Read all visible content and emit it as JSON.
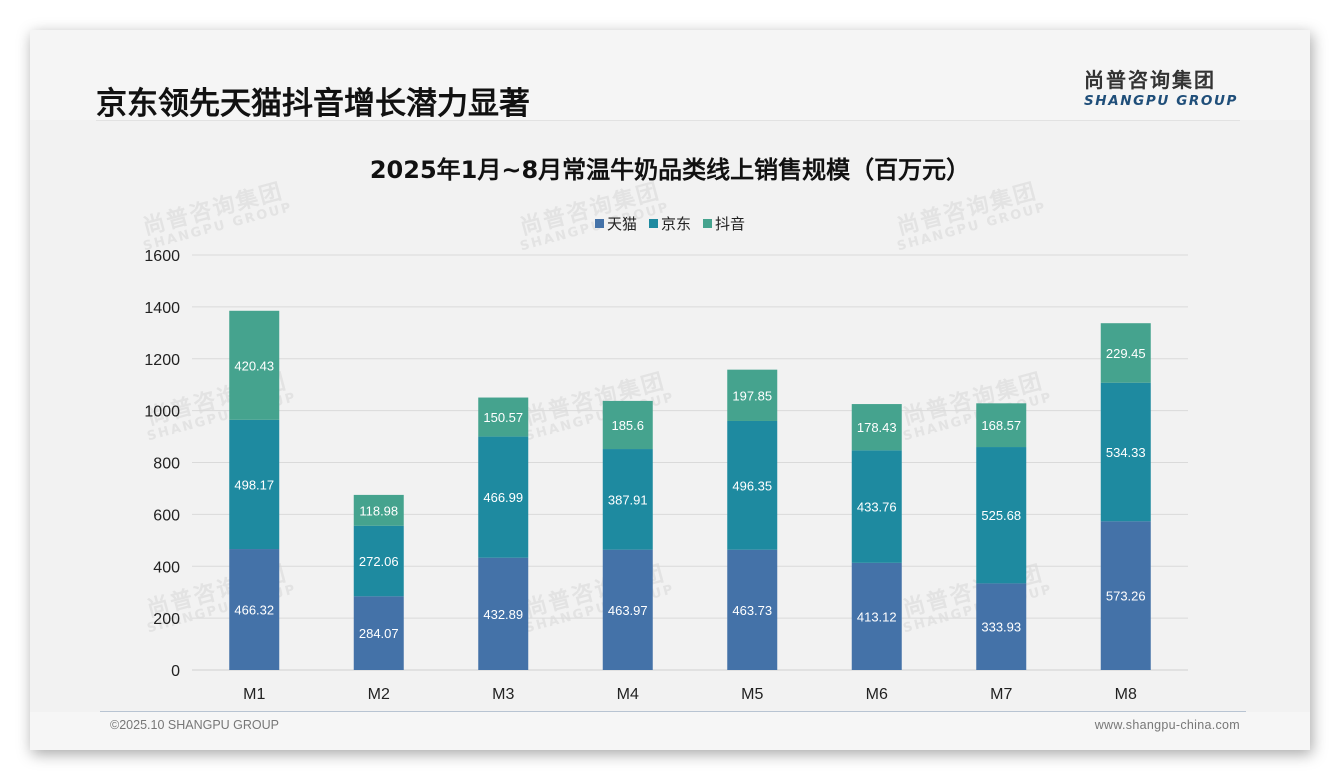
{
  "page": {
    "title": "京东领先天猫抖音增长潜力显著",
    "logo_cn": "尚普咨询集团",
    "logo_en": "SHANGPU GROUP",
    "watermark_cn": "尚普咨询集团",
    "watermark_en": "SHANGPU GROUP",
    "footer_left": "©2025.10 SHANGPU GROUP",
    "footer_right": "www.shangpu-china.com"
  },
  "chart_data": {
    "type": "bar",
    "stacked": true,
    "title": "2025年1月~8月常温牛奶品类线上销售规模（百万元）",
    "xlabel": "",
    "ylabel": "",
    "categories": [
      "M1",
      "M2",
      "M3",
      "M4",
      "M5",
      "M6",
      "M7",
      "M8"
    ],
    "series": [
      {
        "name": "天猫",
        "color": "#4472a8",
        "values": [
          466.32,
          284.07,
          432.89,
          463.97,
          463.73,
          413.12,
          333.93,
          573.26
        ],
        "labels": [
          "466.32",
          "284.07",
          "432.89",
          "463.97",
          "463.73",
          "413.12",
          "333.93",
          "573.26"
        ]
      },
      {
        "name": "京东",
        "color": "#1e8aa0",
        "values": [
          498.17,
          272.06,
          466.99,
          387.91,
          496.35,
          433.76,
          525.68,
          534.33
        ],
        "labels": [
          "498.17",
          "272.06",
          "466.99",
          "387.91",
          "496.35",
          "433.76",
          "525.68",
          "534.33"
        ]
      },
      {
        "name": "抖音",
        "color": "#45a38e",
        "values": [
          420.43,
          118.98,
          150.57,
          185.6,
          197.85,
          178.43,
          168.57,
          229.45
        ],
        "labels": [
          "420.43",
          "118.98",
          "150.57",
          "185.6",
          "197.85",
          "178.43",
          "168.57",
          "229.45"
        ]
      }
    ],
    "ylim": [
      0,
      1600
    ],
    "yticks": [
      0,
      200,
      400,
      600,
      800,
      1000,
      1200,
      1400,
      1600
    ],
    "ytick_labels": [
      "0",
      "200",
      "400",
      "600",
      "800",
      "1000",
      "1200",
      "1400",
      "1600"
    ],
    "grid": true,
    "legend_position": "top-center"
  }
}
